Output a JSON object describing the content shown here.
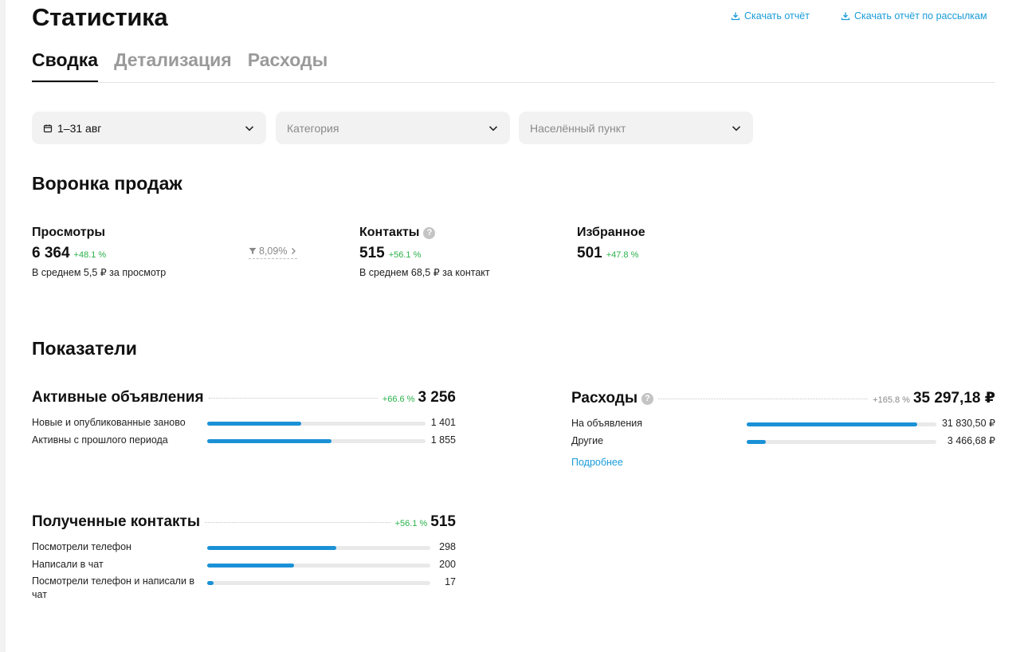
{
  "header": {
    "title": "Статистика",
    "download_report": "Скачать отчёт",
    "download_mailing_report": "Скачать отчёт по рассылкам"
  },
  "tabs": [
    {
      "label": "Сводка",
      "active": true
    },
    {
      "label": "Детализация",
      "active": false
    },
    {
      "label": "Расходы",
      "active": false
    }
  ],
  "filters": {
    "period": "1–31 авг",
    "category_placeholder": "Категория",
    "location_placeholder": "Населённый пункт"
  },
  "funnel": {
    "title": "Воронка продаж",
    "views": {
      "label": "Просмотры",
      "value": "6 364",
      "delta": "+48.1 %",
      "sub": "В среднем 5,5 ₽ за просмотр"
    },
    "conversion": "8,09%",
    "contacts": {
      "label": "Контакты",
      "value": "515",
      "delta": "+56.1 %",
      "sub": "В среднем 68,5 ₽ за контакт"
    },
    "favorites": {
      "label": "Избранное",
      "value": "501",
      "delta": "+47.8 %"
    }
  },
  "metrics": {
    "title": "Показатели",
    "active_ads": {
      "title": "Активные объявления",
      "delta": "+66.6 %",
      "total": "3 256",
      "rows": [
        {
          "label": "Новые и опубликованные заново",
          "value": "1 401",
          "fraction": 0.43
        },
        {
          "label": "Активны с прошлого периода",
          "value": "1 855",
          "fraction": 0.57
        }
      ]
    },
    "expenses": {
      "title": "Расходы",
      "delta": "+165.8 %",
      "total": "35 297,18 ₽",
      "rows": [
        {
          "label": "На объявления",
          "value": "31 830,50 ₽",
          "fraction": 0.9
        },
        {
          "label": "Другие",
          "value": "3 466,68 ₽",
          "fraction": 0.1
        }
      ],
      "more_link": "Подробнее"
    },
    "received_contacts": {
      "title": "Полученные контакты",
      "delta": "+56.1 %",
      "total": "515",
      "rows": [
        {
          "label": "Посмотрели телефон",
          "value": "298",
          "fraction": 0.58
        },
        {
          "label": "Написали в чат",
          "value": "200",
          "fraction": 0.39
        },
        {
          "label": "Посмотрели телефон и написали в чат",
          "value": "17",
          "fraction": 0.03
        }
      ]
    }
  },
  "colors": {
    "accent": "#1a91d6",
    "link": "#1a9cd8",
    "positive": "#2ab14a",
    "filter_bg": "#f2f2f2"
  }
}
